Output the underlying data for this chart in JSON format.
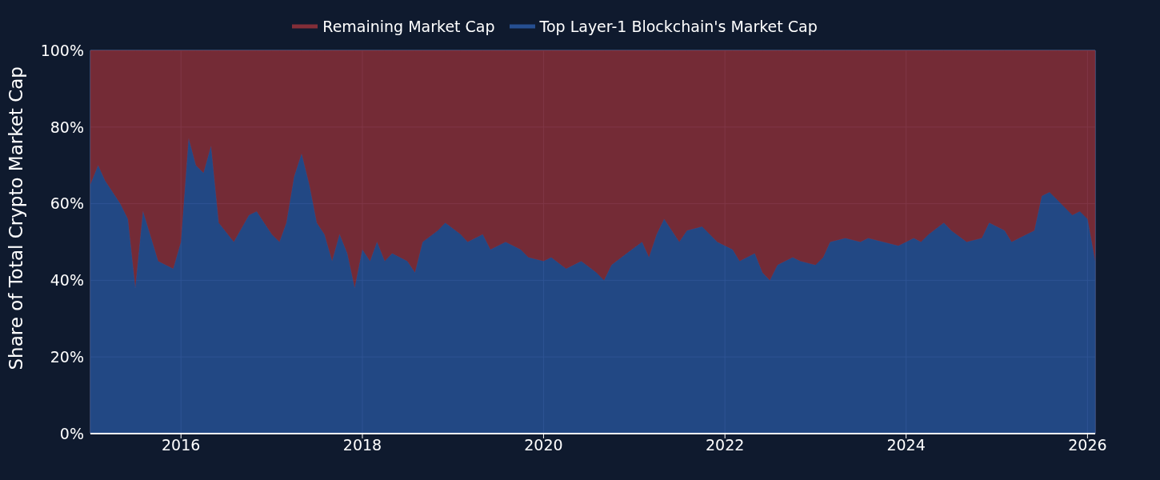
{
  "chart_data": {
    "type": "area",
    "stacked": true,
    "ylabel": "Share of Total Crypto Market Cap",
    "x": [
      "2015-01",
      "2015-02",
      "2015-03",
      "2015-05",
      "2015-06",
      "2015-07",
      "2015-08",
      "2015-10",
      "2015-12",
      "2016-01",
      "2016-02",
      "2016-03",
      "2016-04",
      "2016-05",
      "2016-06",
      "2016-08",
      "2016-10",
      "2016-11",
      "2016-12",
      "2017-01",
      "2017-02",
      "2017-03",
      "2017-04",
      "2017-05",
      "2017-06",
      "2017-07",
      "2017-08",
      "2017-09",
      "2017-10",
      "2017-11",
      "2017-12",
      "2018-01",
      "2018-02",
      "2018-03",
      "2018-04",
      "2018-05",
      "2018-07",
      "2018-08",
      "2018-09",
      "2018-11",
      "2018-12",
      "2019-02",
      "2019-03",
      "2019-05",
      "2019-06",
      "2019-08",
      "2019-10",
      "2019-11",
      "2020-01",
      "2020-02",
      "2020-04",
      "2020-06",
      "2020-08",
      "2020-09",
      "2020-10",
      "2020-12",
      "2021-02",
      "2021-03",
      "2021-04",
      "2021-05",
      "2021-07",
      "2021-08",
      "2021-10",
      "2021-11",
      "2021-12",
      "2022-02",
      "2022-03",
      "2022-05",
      "2022-06",
      "2022-07",
      "2022-08",
      "2022-10",
      "2022-11",
      "2023-01",
      "2023-02",
      "2023-03",
      "2023-05",
      "2023-07",
      "2023-08",
      "2023-10",
      "2023-12",
      "2024-02",
      "2024-03",
      "2024-04",
      "2024-06",
      "2024-07",
      "2024-09",
      "2024-11",
      "2024-12",
      "2025-02",
      "2025-03",
      "2025-05",
      "2025-06",
      "2025-07",
      "2025-08",
      "2025-09",
      "2025-11",
      "2025-12",
      "2026-01",
      "2026-02"
    ],
    "series": [
      {
        "name": "Top Layer-1 Blockchain's Market Cap",
        "color": "#264f91",
        "values": [
          65,
          70,
          66,
          60,
          56,
          38,
          58,
          45,
          43,
          50,
          77,
          70,
          68,
          75,
          55,
          50,
          57,
          58,
          55,
          52,
          50,
          55,
          67,
          73,
          65,
          55,
          52,
          45,
          52,
          47,
          38,
          48,
          45,
          50,
          45,
          47,
          45,
          42,
          50,
          53,
          55,
          52,
          50,
          52,
          48,
          50,
          48,
          46,
          45,
          46,
          43,
          45,
          42,
          40,
          44,
          47,
          50,
          46,
          52,
          56,
          50,
          53,
          54,
          52,
          50,
          48,
          45,
          47,
          42,
          40,
          44,
          46,
          45,
          44,
          46,
          50,
          51,
          50,
          51,
          50,
          49,
          51,
          50,
          52,
          55,
          53,
          50,
          51,
          55,
          53,
          50,
          52,
          53,
          62,
          63,
          61,
          57,
          58,
          56,
          45
        ]
      },
      {
        "name": "Remaining Market Cap",
        "color": "#832e38",
        "values": [
          35,
          30,
          34,
          40,
          44,
          62,
          42,
          55,
          57,
          50,
          23,
          30,
          32,
          25,
          45,
          50,
          43,
          42,
          45,
          48,
          50,
          45,
          33,
          27,
          35,
          45,
          48,
          55,
          48,
          53,
          62,
          52,
          55,
          50,
          55,
          53,
          55,
          58,
          50,
          47,
          45,
          48,
          50,
          48,
          52,
          50,
          52,
          54,
          55,
          54,
          57,
          55,
          58,
          60,
          56,
          53,
          50,
          54,
          48,
          44,
          50,
          47,
          46,
          48,
          50,
          52,
          55,
          53,
          58,
          60,
          56,
          54,
          55,
          56,
          54,
          50,
          49,
          50,
          49,
          50,
          51,
          49,
          50,
          48,
          45,
          47,
          50,
          49,
          45,
          47,
          50,
          48,
          47,
          38,
          37,
          39,
          43,
          42,
          44,
          55
        ]
      }
    ],
    "xlim": [
      "2015-01",
      "2026-02"
    ],
    "xticks": [
      "2016",
      "2018",
      "2020",
      "2022",
      "2024",
      "2026"
    ],
    "ylim": [
      0,
      100
    ],
    "yticks": [
      {
        "value": 0,
        "label": "0%"
      },
      {
        "value": 20,
        "label": "20%"
      },
      {
        "value": 40,
        "label": "40%"
      },
      {
        "value": 60,
        "label": "60%"
      },
      {
        "value": 80,
        "label": "80%"
      },
      {
        "value": 100,
        "label": "100%"
      }
    ],
    "grid": true,
    "legend": "top"
  }
}
